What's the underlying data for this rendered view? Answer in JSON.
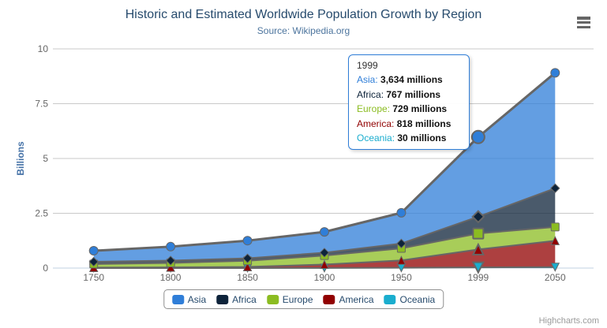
{
  "header": {
    "title": "Historic and Estimated Worldwide Population Growth by Region",
    "subtitle": "Source: Wikipedia.org"
  },
  "toolbar": {
    "menu_icon": "hamburger-icon",
    "menu_color": "#666666"
  },
  "y_axis": {
    "title": "Billions",
    "tick_labels": [
      "0",
      "2.5",
      "5",
      "7.5",
      "10"
    ]
  },
  "x_axis": {
    "categories": [
      "1750",
      "1800",
      "1850",
      "1900",
      "1950",
      "1999",
      "2050"
    ]
  },
  "chart_data": {
    "type": "area",
    "stacking": "normal",
    "title": "Historic and Estimated Worldwide Population Growth by Region",
    "subtitle": "Source: Wikipedia.org",
    "xlabel": "",
    "ylabel": "Billions",
    "ylim": [
      0,
      10
    ],
    "yticks": [
      0,
      2.5,
      5,
      7.5,
      10
    ],
    "values_unit": "millions",
    "categories": [
      "1750",
      "1800",
      "1850",
      "1900",
      "1950",
      "1999",
      "2050"
    ],
    "series": [
      {
        "name": "Asia",
        "color": "#2f7ed8",
        "marker": "circle",
        "values": [
          502,
          635,
          809,
          947,
          1402,
          3634,
          5268
        ]
      },
      {
        "name": "Africa",
        "color": "#0d233a",
        "marker": "diamond",
        "values": [
          106,
          107,
          111,
          133,
          221,
          767,
          1766
        ]
      },
      {
        "name": "Europe",
        "color": "#8bbc21",
        "marker": "square",
        "values": [
          163,
          203,
          276,
          408,
          547,
          729,
          628
        ]
      },
      {
        "name": "America",
        "color": "#910000",
        "marker": "triangle",
        "values": [
          18,
          31,
          54,
          156,
          339,
          818,
          1201
        ]
      },
      {
        "name": "Oceania",
        "color": "#1aadce",
        "marker": "triangle-down",
        "values": [
          2,
          2,
          2,
          6,
          13,
          30,
          46
        ]
      }
    ],
    "line_color": "#666666",
    "fill_opacity": 0.75,
    "grid": "horizontal",
    "legend_position": "bottom",
    "hover_category": "1999"
  },
  "tooltip": {
    "header": "1999",
    "rows": [
      {
        "name": "Asia",
        "separator": ": ",
        "value": "3,634 millions",
        "color": "#2f7ed8"
      },
      {
        "name": "Africa",
        "separator": ": ",
        "value": "767 millions",
        "color": "#0d233a"
      },
      {
        "name": "Europe",
        "separator": ": ",
        "value": "729 millions",
        "color": "#8bbc21"
      },
      {
        "name": "America",
        "separator": ": ",
        "value": "818 millions",
        "color": "#910000"
      },
      {
        "name": "Oceania",
        "separator": ": ",
        "value": "30 millions",
        "color": "#1aadce"
      }
    ]
  },
  "legend": {
    "items": [
      {
        "label": "Asia",
        "color": "#2f7ed8"
      },
      {
        "label": "Africa",
        "color": "#0d233a"
      },
      {
        "label": "Europe",
        "color": "#8bbc21"
      },
      {
        "label": "America",
        "color": "#910000"
      },
      {
        "label": "Oceania",
        "color": "#1aadce"
      }
    ]
  },
  "footer": {
    "credit": "Highcharts.com"
  },
  "colors": {
    "title": "#274b6d",
    "subtitle": "#4d759e",
    "axis_labels": "#666666",
    "y_axis_title": "#4572a7",
    "legend_text": "#274b6d",
    "grid": "#c9c9c9",
    "axis_line": "#c0d0e0",
    "tooltip_border": "#2f7ed8",
    "credit": "#9b9b9b"
  }
}
